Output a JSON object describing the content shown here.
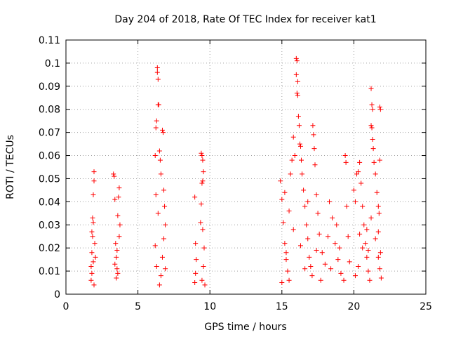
{
  "chart_data": {
    "type": "scatter",
    "title": "Day 204 of 2018, Rate Of TEC Index for receiver kat1",
    "xlabel": "GPS time / hours",
    "ylabel": "ROTI / TECUs",
    "xlim": [
      0,
      25
    ],
    "ylim": [
      0,
      0.11
    ],
    "xticks": [
      0,
      5,
      10,
      15,
      20,
      25
    ],
    "yticks": [
      0,
      0.01,
      0.02,
      0.03,
      0.04,
      0.05,
      0.06,
      0.07,
      0.08,
      0.09,
      0.1,
      0.11
    ],
    "xtick_labels": [
      "0",
      "5",
      "10",
      "15",
      "20",
      "25"
    ],
    "ytick_labels": [
      "0",
      "0.01",
      "0.02",
      "0.03",
      "0.04",
      "0.05",
      "0.06",
      "0.07",
      "0.08",
      "0.09",
      "0.1",
      "0.11"
    ],
    "grid": true,
    "marker": "+",
    "color": "#ff0000",
    "series": [
      {
        "name": "kat1",
        "points": [
          [
            1.75,
            0.012
          ],
          [
            1.8,
            0.018
          ],
          [
            1.85,
            0.025
          ],
          [
            1.9,
            0.031
          ],
          [
            1.95,
            0.053
          ],
          [
            1.95,
            0.049
          ],
          [
            1.9,
            0.043
          ],
          [
            1.85,
            0.033
          ],
          [
            1.8,
            0.009
          ],
          [
            1.75,
            0.006
          ],
          [
            1.9,
            0.014
          ],
          [
            2.0,
            0.022
          ],
          [
            1.95,
            0.004
          ],
          [
            2.05,
            0.016
          ],
          [
            1.8,
            0.027
          ],
          [
            3.3,
            0.052
          ],
          [
            3.35,
            0.051
          ],
          [
            3.4,
            0.041
          ],
          [
            3.45,
            0.022
          ],
          [
            3.5,
            0.016
          ],
          [
            3.55,
            0.011
          ],
          [
            3.6,
            0.034
          ],
          [
            3.65,
            0.042
          ],
          [
            3.7,
            0.046
          ],
          [
            3.75,
            0.03
          ],
          [
            3.5,
            0.007
          ],
          [
            3.6,
            0.009
          ],
          [
            3.4,
            0.013
          ],
          [
            3.7,
            0.025
          ],
          [
            3.55,
            0.019
          ],
          [
            6.2,
            0.06
          ],
          [
            6.25,
            0.072
          ],
          [
            6.3,
            0.075
          ],
          [
            6.35,
            0.098
          ],
          [
            6.35,
            0.096
          ],
          [
            6.4,
            0.093
          ],
          [
            6.4,
            0.082
          ],
          [
            6.45,
            0.082
          ],
          [
            6.5,
            0.062
          ],
          [
            6.55,
            0.058
          ],
          [
            6.6,
            0.052
          ],
          [
            6.7,
            0.071
          ],
          [
            6.75,
            0.07
          ],
          [
            6.8,
            0.045
          ],
          [
            6.85,
            0.038
          ],
          [
            6.9,
            0.03
          ],
          [
            6.2,
            0.021
          ],
          [
            6.3,
            0.012
          ],
          [
            6.5,
            0.004
          ],
          [
            6.6,
            0.008
          ],
          [
            6.7,
            0.016
          ],
          [
            6.8,
            0.024
          ],
          [
            6.4,
            0.035
          ],
          [
            6.25,
            0.043
          ],
          [
            6.9,
            0.011
          ],
          [
            8.95,
            0.042
          ],
          [
            9.0,
            0.022
          ],
          [
            9.05,
            0.015
          ],
          [
            9.0,
            0.009
          ],
          [
            8.95,
            0.005
          ],
          [
            9.4,
            0.061
          ],
          [
            9.45,
            0.06
          ],
          [
            9.5,
            0.058
          ],
          [
            9.55,
            0.053
          ],
          [
            9.5,
            0.049
          ],
          [
            9.45,
            0.048
          ],
          [
            9.4,
            0.039
          ],
          [
            9.35,
            0.031
          ],
          [
            9.5,
            0.028
          ],
          [
            9.6,
            0.02
          ],
          [
            9.55,
            0.012
          ],
          [
            9.45,
            0.006
          ],
          [
            9.65,
            0.004
          ],
          [
            14.9,
            0.049
          ],
          [
            15.0,
            0.041
          ],
          [
            15.1,
            0.031
          ],
          [
            15.2,
            0.022
          ],
          [
            15.3,
            0.015
          ],
          [
            15.4,
            0.01
          ],
          [
            15.5,
            0.006
          ],
          [
            15.6,
            0.052
          ],
          [
            15.7,
            0.058
          ],
          [
            15.8,
            0.068
          ],
          [
            15.9,
            0.06
          ],
          [
            16.0,
            0.102
          ],
          [
            16.05,
            0.101
          ],
          [
            16.0,
            0.095
          ],
          [
            16.1,
            0.092
          ],
          [
            16.05,
            0.087
          ],
          [
            16.1,
            0.086
          ],
          [
            16.15,
            0.077
          ],
          [
            16.2,
            0.073
          ],
          [
            16.25,
            0.065
          ],
          [
            16.3,
            0.064
          ],
          [
            16.35,
            0.058
          ],
          [
            16.4,
            0.052
          ],
          [
            16.5,
            0.045
          ],
          [
            16.6,
            0.038
          ],
          [
            16.7,
            0.03
          ],
          [
            16.8,
            0.024
          ],
          [
            16.9,
            0.016
          ],
          [
            17.0,
            0.012
          ],
          [
            17.15,
            0.073
          ],
          [
            17.2,
            0.069
          ],
          [
            17.25,
            0.063
          ],
          [
            17.3,
            0.056
          ],
          [
            17.4,
            0.043
          ],
          [
            17.5,
            0.035
          ],
          [
            17.6,
            0.026
          ],
          [
            17.8,
            0.018
          ],
          [
            18.0,
            0.013
          ],
          [
            18.3,
            0.04
          ],
          [
            18.5,
            0.033
          ],
          [
            18.7,
            0.022
          ],
          [
            18.9,
            0.015
          ],
          [
            19.1,
            0.009
          ],
          [
            19.3,
            0.006
          ],
          [
            19.4,
            0.06
          ],
          [
            19.45,
            0.057
          ],
          [
            19.5,
            0.038
          ],
          [
            19.6,
            0.025
          ],
          [
            19.7,
            0.014
          ],
          [
            15.2,
            0.044
          ],
          [
            15.5,
            0.036
          ],
          [
            15.8,
            0.028
          ],
          [
            16.3,
            0.021
          ],
          [
            16.6,
            0.011
          ],
          [
            17.1,
            0.008
          ],
          [
            17.7,
            0.006
          ],
          [
            18.2,
            0.025
          ],
          [
            18.8,
            0.03
          ],
          [
            15.0,
            0.005
          ],
          [
            15.3,
            0.018
          ],
          [
            16.8,
            0.04
          ],
          [
            17.4,
            0.019
          ],
          [
            18.4,
            0.011
          ],
          [
            19.0,
            0.02
          ],
          [
            20.0,
            0.045
          ],
          [
            20.1,
            0.04
          ],
          [
            20.2,
            0.052
          ],
          [
            20.3,
            0.053
          ],
          [
            20.4,
            0.057
          ],
          [
            20.5,
            0.048
          ],
          [
            20.6,
            0.038
          ],
          [
            20.7,
            0.03
          ],
          [
            20.8,
            0.022
          ],
          [
            20.9,
            0.016
          ],
          [
            21.0,
            0.01
          ],
          [
            21.1,
            0.006
          ],
          [
            21.2,
            0.089
          ],
          [
            21.25,
            0.082
          ],
          [
            21.3,
            0.08
          ],
          [
            21.2,
            0.073
          ],
          [
            21.25,
            0.072
          ],
          [
            21.3,
            0.067
          ],
          [
            21.35,
            0.063
          ],
          [
            21.4,
            0.057
          ],
          [
            21.5,
            0.052
          ],
          [
            21.6,
            0.044
          ],
          [
            21.7,
            0.038
          ],
          [
            21.8,
            0.081
          ],
          [
            21.85,
            0.08
          ],
          [
            21.8,
            0.058
          ],
          [
            21.75,
            0.035
          ],
          [
            21.7,
            0.027
          ],
          [
            21.85,
            0.018
          ],
          [
            21.8,
            0.011
          ],
          [
            21.9,
            0.007
          ],
          [
            20.3,
            0.012
          ],
          [
            20.6,
            0.02
          ],
          [
            20.9,
            0.028
          ],
          [
            21.2,
            0.033
          ],
          [
            21.5,
            0.024
          ],
          [
            21.7,
            0.016
          ],
          [
            20.1,
            0.008
          ],
          [
            20.4,
            0.026
          ],
          [
            21.0,
            0.019
          ]
        ]
      }
    ]
  }
}
